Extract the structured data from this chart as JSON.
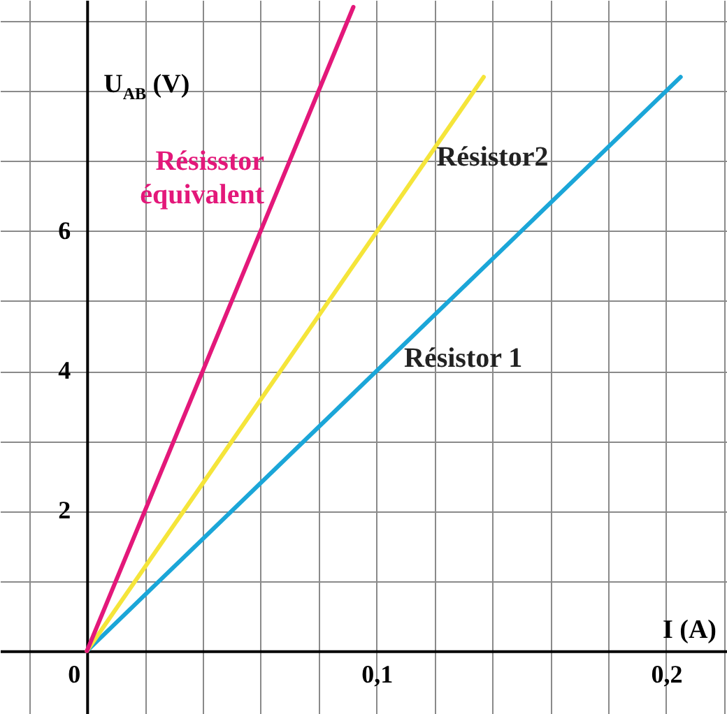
{
  "chart_data": {
    "type": "line",
    "xlabel": "I (A)",
    "ylabel": "U$_{AB}$ (V)",
    "xlim": [
      -0.03,
      0.221
    ],
    "ylim": [
      -0.9,
      9.3
    ],
    "xticks": [
      {
        "value": -0.02,
        "label": null
      },
      {
        "value": 0,
        "label": "0"
      },
      {
        "value": 0.02,
        "label": null
      },
      {
        "value": 0.04,
        "label": null
      },
      {
        "value": 0.06,
        "label": null
      },
      {
        "value": 0.08,
        "label": null
      },
      {
        "value": 0.1,
        "label": "0,1"
      },
      {
        "value": 0.12,
        "label": null
      },
      {
        "value": 0.14,
        "label": null
      },
      {
        "value": 0.16,
        "label": null
      },
      {
        "value": 0.18,
        "label": null
      },
      {
        "value": 0.2,
        "label": "0,2"
      },
      {
        "value": 0.22,
        "label": null
      }
    ],
    "yticks": [
      {
        "value": 0,
        "label": null
      },
      {
        "value": 1,
        "label": null
      },
      2,
      {
        "value": 3,
        "label": null
      },
      4,
      {
        "value": 5,
        "label": null
      },
      6,
      {
        "value": 7,
        "label": null
      },
      {
        "value": 8,
        "label": null
      },
      {
        "value": 9,
        "label": null
      }
    ],
    "grid": true,
    "line_style": "solid",
    "series": [
      {
        "name": "Résistor 1",
        "color": "#1ba6d8",
        "x": [
          0,
          0.205
        ],
        "values": [
          0,
          8.2
        ]
      },
      {
        "name": "Résistor2",
        "color": "#f5e53a",
        "x": [
          0,
          0.137
        ],
        "values": [
          0,
          8.2
        ]
      },
      {
        "name": "Résisstor équivalent",
        "color": "#e3187a",
        "x": [
          0,
          0.092
        ],
        "values": [
          0,
          9.2
        ]
      }
    ]
  }
}
